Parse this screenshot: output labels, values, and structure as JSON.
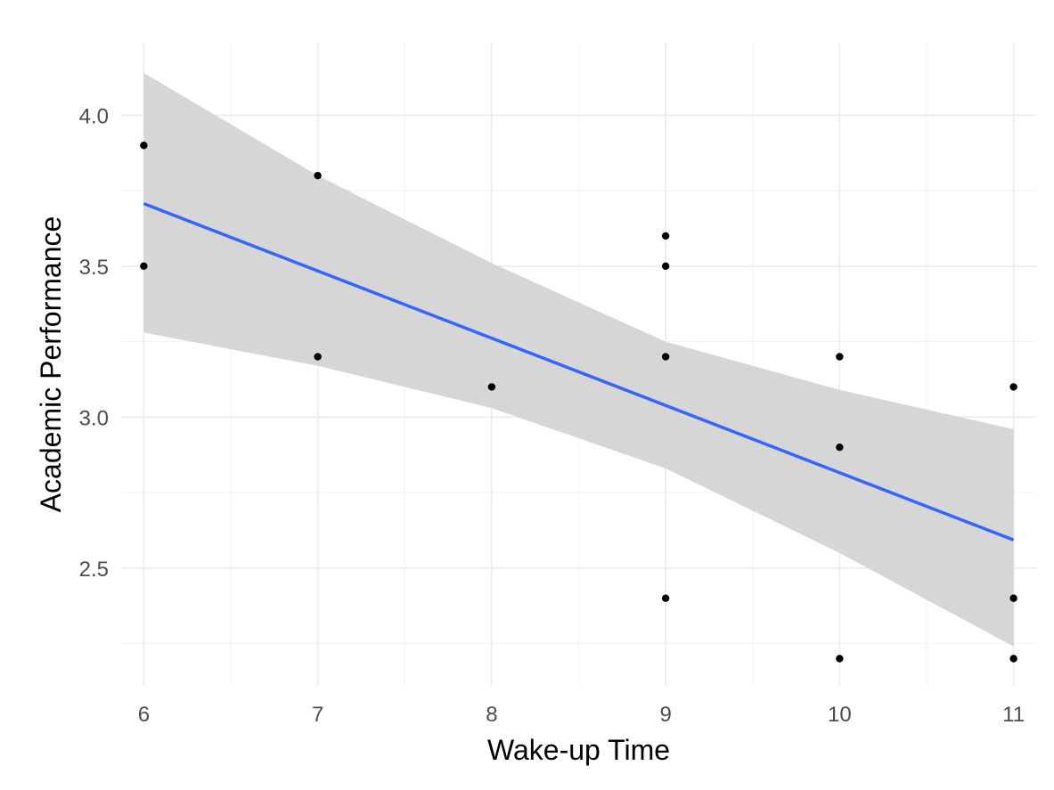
{
  "chart_data": {
    "type": "scatter",
    "title": "",
    "xlabel": "Wake-up Time",
    "ylabel": "Academic Performance",
    "xlim": [
      5.87,
      11.13
    ],
    "ylim": [
      2.11,
      4.24
    ],
    "x_major_ticks": [
      6,
      7,
      8,
      9,
      10,
      11
    ],
    "x_minor_ticks": [
      6.5,
      7.5,
      8.5,
      9.5,
      10.5
    ],
    "y_major_ticks": [
      2.5,
      3.0,
      3.5,
      4.0
    ],
    "y_minor_ticks": [
      2.25,
      2.75,
      3.25,
      3.75
    ],
    "x_tick_labels": [
      "6",
      "7",
      "8",
      "9",
      "10",
      "11"
    ],
    "y_tick_labels": [
      "2.5",
      "3.0",
      "3.5",
      "4.0"
    ],
    "grid": true,
    "legend": "none",
    "colors": {
      "points": "#000000",
      "fit_line": "#3366FF",
      "ribbon": "#d6d6d6",
      "grid_major": "#ebebeb",
      "grid_minor": "#f3f3f3"
    },
    "points": [
      {
        "x": 6,
        "y": 3.9
      },
      {
        "x": 6,
        "y": 3.5
      },
      {
        "x": 7,
        "y": 3.8
      },
      {
        "x": 7,
        "y": 3.2
      },
      {
        "x": 8,
        "y": 3.1
      },
      {
        "x": 9,
        "y": 3.6
      },
      {
        "x": 9,
        "y": 3.5
      },
      {
        "x": 9,
        "y": 3.2
      },
      {
        "x": 9,
        "y": 2.4
      },
      {
        "x": 10,
        "y": 3.2
      },
      {
        "x": 10,
        "y": 2.9
      },
      {
        "x": 10,
        "y": 2.2
      },
      {
        "x": 11,
        "y": 3.1
      },
      {
        "x": 11,
        "y": 2.4
      },
      {
        "x": 11,
        "y": 2.2
      }
    ],
    "fit": {
      "method": "lm",
      "x": [
        6,
        11
      ],
      "y": [
        3.707,
        2.593
      ]
    },
    "ribbon": {
      "x": [
        6,
        7,
        8,
        9,
        10,
        11
      ],
      "upper": [
        4.14,
        3.8,
        3.51,
        3.25,
        3.09,
        2.96
      ],
      "lower": [
        3.28,
        3.17,
        3.03,
        2.83,
        2.55,
        2.24
      ]
    }
  }
}
